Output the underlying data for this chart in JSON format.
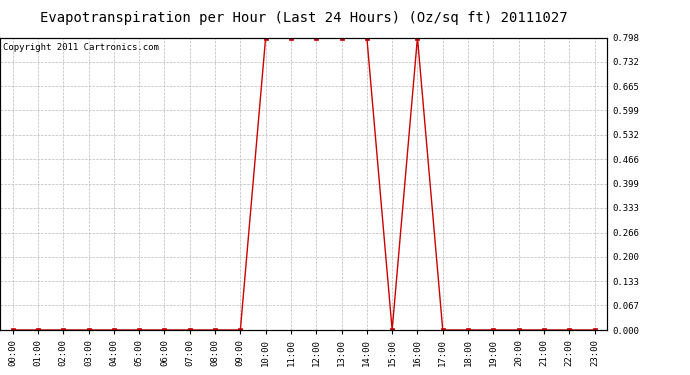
{
  "title": "Evapotranspiration per Hour (Last 24 Hours) (Oz/sq ft) 20111027",
  "copyright_text": "Copyright 2011 Cartronics.com",
  "x_labels": [
    "00:00",
    "01:00",
    "02:00",
    "03:00",
    "04:00",
    "05:00",
    "06:00",
    "07:00",
    "08:00",
    "09:00",
    "10:00",
    "11:00",
    "12:00",
    "13:00",
    "14:00",
    "15:00",
    "16:00",
    "17:00",
    "18:00",
    "19:00",
    "20:00",
    "21:00",
    "22:00",
    "23:00"
  ],
  "hours": [
    0,
    1,
    2,
    3,
    4,
    5,
    6,
    7,
    8,
    9,
    10,
    11,
    12,
    13,
    14,
    15,
    16,
    17,
    18,
    19,
    20,
    21,
    22,
    23
  ],
  "values": [
    0.0,
    0.0,
    0.0,
    0.0,
    0.0,
    0.0,
    0.0,
    0.0,
    0.0,
    0.0,
    0.798,
    0.798,
    0.798,
    0.798,
    0.798,
    0.0,
    0.798,
    0.0,
    0.0,
    0.0,
    0.0,
    0.0,
    0.0,
    0.0
  ],
  "line_color": "#cc0000",
  "marker": "s",
  "marker_size": 2.5,
  "bg_color": "#ffffff",
  "plot_bg_color": "#ffffff",
  "grid_color": "#bbbbbb",
  "ylim": [
    0.0,
    0.798
  ],
  "yticks": [
    0.0,
    0.067,
    0.133,
    0.2,
    0.266,
    0.333,
    0.399,
    0.466,
    0.532,
    0.599,
    0.665,
    0.732,
    0.798
  ],
  "title_fontsize": 10,
  "copyright_fontsize": 6.5,
  "tick_fontsize": 6.5
}
